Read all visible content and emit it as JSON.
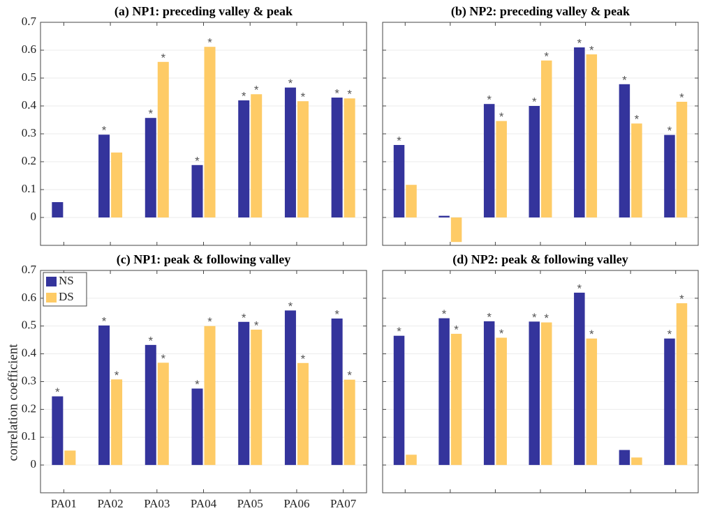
{
  "chart_data": [
    {
      "type": "bar",
      "title": "(a) NP1: preceding valley & peak",
      "categories": [
        null,
        null,
        null,
        null,
        null,
        null,
        null
      ],
      "series": [
        {
          "name": "NS",
          "color": "#34349c",
          "values": [
            0.055,
            0.297,
            0.357,
            0.188,
            0.42,
            0.466,
            0.43
          ],
          "markers": [
            null,
            "*",
            "*",
            "*",
            "*",
            "*",
            "*"
          ]
        },
        {
          "name": "DS",
          "color": "#fecb66",
          "values": [
            0,
            0.233,
            0.558,
            0.612,
            0.442,
            0.417,
            0.427
          ],
          "markers": [
            null,
            null,
            "*",
            "*",
            "*",
            "*",
            "*"
          ]
        }
      ],
      "ylim": [
        -0.1,
        0.7
      ],
      "yticks": [
        0,
        0.1,
        0.2,
        0.3,
        0.4,
        0.5,
        0.6,
        0.7
      ],
      "tick_labels": true,
      "grid": true
    },
    {
      "type": "bar",
      "title": "(b) NP2: preceding valley & peak",
      "categories": [
        null,
        null,
        null,
        null,
        null,
        null,
        null
      ],
      "series": [
        {
          "name": "NS",
          "color": "#34349c",
          "values": [
            0.26,
            0.006,
            0.407,
            0.4,
            0.61,
            0.478,
            0.296
          ],
          "markers": [
            "*",
            null,
            "*",
            "*",
            "*",
            "*",
            "*"
          ]
        },
        {
          "name": "DS",
          "color": "#fecb66",
          "values": [
            0.117,
            -0.088,
            0.346,
            0.563,
            0.585,
            0.337,
            0.415
          ],
          "markers": [
            null,
            null,
            "*",
            "*",
            "*",
            "*",
            "*"
          ]
        }
      ],
      "ylim": [
        -0.1,
        0.7
      ],
      "yticks": [
        0,
        0.1,
        0.2,
        0.3,
        0.4,
        0.5,
        0.6,
        0.7
      ],
      "tick_labels": false,
      "grid": true
    },
    {
      "type": "bar",
      "title": "(c) NP1: peak & following valley",
      "y_label": "correlation coefficient",
      "categories": [
        "PA01",
        "PA02",
        "PA03",
        "PA04",
        "PA05",
        "PA06",
        "PA07"
      ],
      "series": [
        {
          "name": "NS",
          "color": "#34349c",
          "values": [
            0.247,
            0.502,
            0.432,
            0.275,
            0.515,
            0.556,
            0.527
          ],
          "markers": [
            "*",
            "*",
            "*",
            "*",
            "*",
            "*",
            "*"
          ]
        },
        {
          "name": "DS",
          "color": "#fecb66",
          "values": [
            0.052,
            0.308,
            0.368,
            0.5,
            0.487,
            0.367,
            0.307
          ],
          "markers": [
            null,
            "*",
            "*",
            "*",
            "*",
            "*",
            "*"
          ]
        }
      ],
      "ylim": [
        -0.1,
        0.7
      ],
      "yticks": [
        0,
        0.1,
        0.2,
        0.3,
        0.4,
        0.5,
        0.6,
        0.7
      ],
      "tick_labels": true,
      "grid": true,
      "legend": "upper-left"
    },
    {
      "type": "bar",
      "title": "(d) NP2: peak & following valley",
      "categories": [
        null,
        null,
        null,
        null,
        null,
        null,
        null
      ],
      "series": [
        {
          "name": "NS",
          "color": "#34349c",
          "values": [
            0.465,
            0.528,
            0.517,
            0.516,
            0.62,
            0.054,
            0.455
          ],
          "markers": [
            "*",
            "*",
            "*",
            "*",
            "*",
            null,
            "*"
          ]
        },
        {
          "name": "DS",
          "color": "#fecb66",
          "values": [
            0.037,
            0.472,
            0.458,
            0.513,
            0.455,
            0.027,
            0.582
          ],
          "markers": [
            null,
            "*",
            "*",
            "*",
            "*",
            null,
            "*"
          ]
        }
      ],
      "ylim": [
        -0.1,
        0.7
      ],
      "yticks": [
        0,
        0.1,
        0.2,
        0.3,
        0.4,
        0.5,
        0.6,
        0.7
      ],
      "tick_labels": false,
      "grid": true
    }
  ]
}
